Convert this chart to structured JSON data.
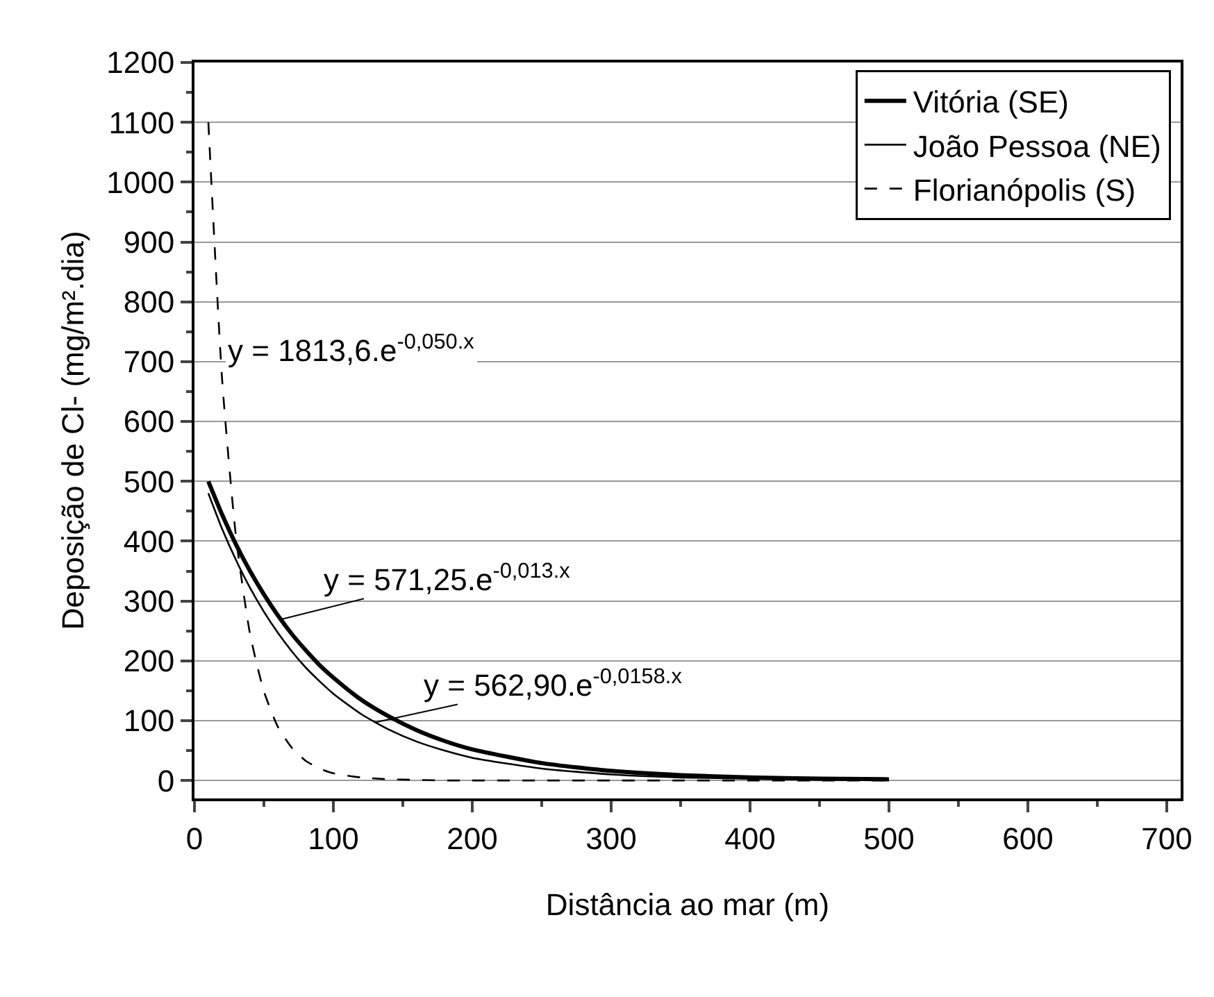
{
  "chart_data": {
    "type": "line",
    "xlabel": "Distância ao mar (m)",
    "ylabel": "Deposição de Cl- (mg/m².dia)",
    "x": [
      10,
      20,
      30,
      40,
      50,
      60,
      70,
      80,
      90,
      100,
      120,
      140,
      160,
      180,
      200,
      250,
      300,
      350,
      400,
      450,
      500
    ],
    "series": [
      {
        "name": "Vitória (SE)",
        "color": "#000000",
        "line_style": "solid",
        "values": [
          500,
          444,
          394,
          350,
          311,
          276,
          245,
          218,
          193,
          172,
          135,
          107,
          84,
          66,
          52,
          29,
          16,
          9,
          5,
          3,
          2
        ]
      },
      {
        "name": "João Pessoa (NE)",
        "color": "#000000",
        "line_style": "solid",
        "values": [
          480,
          420,
          368,
          322,
          282,
          247,
          216,
          189,
          166,
          145,
          111,
          85,
          65,
          50,
          38,
          20,
          10,
          5,
          3,
          1,
          1
        ]
      },
      {
        "name": "Florianópolis (S)",
        "color": "#000000",
        "line_style": "dashed",
        "values": [
          1100,
          667,
          405,
          245,
          149,
          90,
          55,
          33,
          20,
          12,
          5,
          2,
          1,
          0,
          0,
          0,
          0,
          0,
          0,
          0,
          0
        ]
      }
    ],
    "xlim": [
      0,
      710
    ],
    "xticks": [
      0,
      100,
      200,
      300,
      400,
      500,
      600,
      700
    ],
    "ylim": [
      -30,
      1200
    ],
    "yticks": [
      0,
      100,
      200,
      300,
      400,
      500,
      600,
      700,
      800,
      900,
      1000,
      1100,
      1200
    ],
    "grid": "y",
    "legend": "top right",
    "marker": "none",
    "annotations": [
      {
        "text": "y = 1813,6.e$^{-0,050.x}$",
        "x": 18,
        "y": 720
      },
      {
        "text": "y = 571,25.e$^{-0,013.x}$",
        "x": 62,
        "y": 269
      },
      {
        "text": "y = 562,90.e$^{-0,0158.x}$",
        "x": 130,
        "y": 97
      }
    ]
  }
}
